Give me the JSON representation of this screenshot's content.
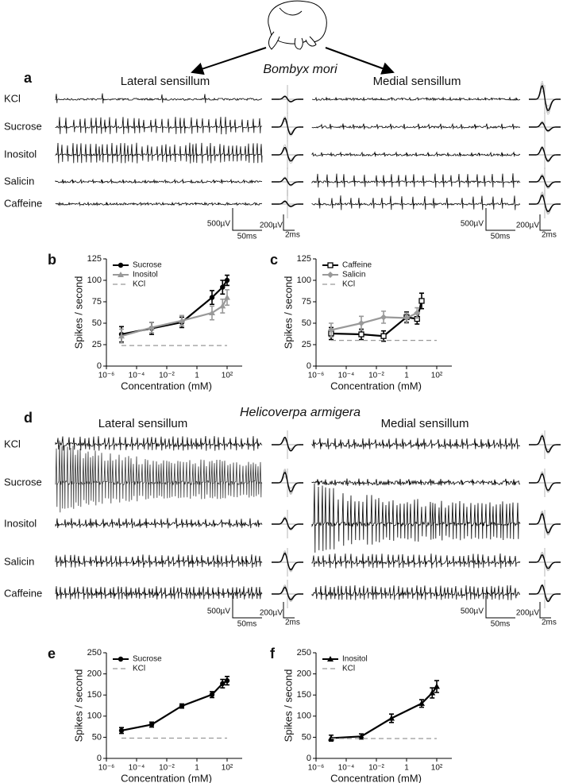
{
  "panel_a": {
    "label": "a",
    "species": "Bombyx mori",
    "lateral": "Lateral sensillum",
    "medial": "Medial sensillum",
    "rows": [
      "KCl",
      "Sucrose",
      "Inositol",
      "Salicin",
      "Caffeine"
    ],
    "scale": {
      "trace_v": "500µV",
      "trace_t": "50ms",
      "inset_v": "200µV",
      "inset_t": "2ms"
    }
  },
  "panel_d": {
    "label": "d",
    "species": "Helicoverpa armigera",
    "lateral": "Lateral sensillum",
    "medial": "Medial sensillum",
    "rows": [
      "KCl",
      "Sucrose",
      "Inositol",
      "Salicin",
      "Caffeine"
    ],
    "scale": {
      "trace_v": "500µV",
      "trace_t": "50ms",
      "inset_v": "200µV",
      "inset_t": "2ms"
    }
  },
  "chart_data": [
    {
      "type": "line",
      "panel_label": "b",
      "xlabel": "Concentration (mM)",
      "ylabel": "Spikes / second",
      "xscale": "log",
      "xlim": [
        1e-06,
        1000
      ],
      "xticks": [
        {
          "value": 1e-06,
          "label": "10⁻⁶"
        },
        {
          "value": 0.0001,
          "label": "10⁻⁴"
        },
        {
          "value": 0.01,
          "label": "10⁻²"
        },
        1,
        {
          "value": 100,
          "label": "10²"
        }
      ],
      "ylim": [
        0,
        125
      ],
      "yticks": [
        0,
        25,
        50,
        75,
        100,
        125
      ],
      "legend": "upper left",
      "series": [
        {
          "name": "Sucrose",
          "color": "#000000",
          "marker": "circle",
          "x": [
            1e-05,
            0.001,
            0.1,
            10,
            50,
            100
          ],
          "values": [
            37,
            44,
            51,
            80,
            92,
            100
          ],
          "errors": [
            9,
            7,
            6,
            8,
            8,
            6
          ]
        },
        {
          "name": "Inositol",
          "color": "#999999",
          "marker": "triangle",
          "x": [
            1e-05,
            0.001,
            0.1,
            10,
            50,
            100
          ],
          "values": [
            35,
            45,
            53,
            62,
            70,
            80
          ],
          "errors": [
            8,
            6,
            6,
            8,
            8,
            9
          ]
        },
        {
          "name": "KCl",
          "color": "#999999",
          "dash": true,
          "x": [
            1e-05,
            100
          ],
          "values": [
            24,
            24
          ]
        }
      ]
    },
    {
      "type": "line",
      "panel_label": "c",
      "xlabel": "Concentration (mM)",
      "ylabel": "Spikes / second",
      "xscale": "log",
      "xlim": [
        1e-06,
        1000
      ],
      "xticks": [
        {
          "value": 1e-06,
          "label": "10⁻⁶"
        },
        {
          "value": 0.0001,
          "label": "10⁻⁴"
        },
        {
          "value": 0.01,
          "label": "10⁻²"
        },
        1,
        {
          "value": 100,
          "label": "10²"
        }
      ],
      "ylim": [
        0,
        125
      ],
      "yticks": [
        0,
        25,
        50,
        75,
        100,
        125
      ],
      "legend": "upper left",
      "series": [
        {
          "name": "Caffeine",
          "color": "#000000",
          "marker": "square-open",
          "x": [
            1e-05,
            0.001,
            0.03,
            1,
            5,
            10
          ],
          "values": [
            38,
            37,
            35,
            57,
            55,
            76
          ],
          "errors": [
            7,
            6,
            6,
            6,
            6,
            9
          ]
        },
        {
          "name": "Salicin",
          "color": "#999999",
          "marker": "diamond",
          "x": [
            1e-05,
            0.001,
            0.03,
            1,
            5
          ],
          "values": [
            42,
            50,
            57,
            56,
            62
          ],
          "errors": [
            8,
            8,
            7,
            6,
            6
          ]
        },
        {
          "name": "KCl",
          "color": "#999999",
          "dash": true,
          "x": [
            1e-05,
            100
          ],
          "values": [
            30,
            30
          ]
        }
      ]
    },
    {
      "type": "line",
      "panel_label": "e",
      "xlabel": "Concentration (mM)",
      "ylabel": "Spikes / second",
      "xscale": "log",
      "xlim": [
        1e-06,
        1000
      ],
      "xticks": [
        {
          "value": 1e-06,
          "label": "10⁻⁶"
        },
        {
          "value": 0.0001,
          "label": "10⁻⁴"
        },
        {
          "value": 0.01,
          "label": "10⁻²"
        },
        1,
        {
          "value": 100,
          "label": "10²"
        }
      ],
      "ylim": [
        0,
        250
      ],
      "yticks": [
        0,
        50,
        100,
        150,
        200,
        250
      ],
      "legend": "upper left",
      "series": [
        {
          "name": "Sucrose",
          "color": "#000000",
          "marker": "circle",
          "x": [
            1e-05,
            0.001,
            0.1,
            10,
            50,
            100
          ],
          "values": [
            66,
            80,
            124,
            151,
            177,
            184
          ],
          "errors": [
            7,
            6,
            5,
            7,
            10,
            10
          ]
        },
        {
          "name": "KCl",
          "color": "#999999",
          "dash": true,
          "x": [
            1e-05,
            100
          ],
          "values": [
            48,
            48
          ]
        }
      ]
    },
    {
      "type": "line",
      "panel_label": "f",
      "xlabel": "Concentration (mM)",
      "ylabel": "Spikes / second",
      "xscale": "log",
      "xlim": [
        1e-06,
        1000
      ],
      "xticks": [
        {
          "value": 1e-06,
          "label": "10⁻⁶"
        },
        {
          "value": 0.0001,
          "label": "10⁻⁴"
        },
        {
          "value": 0.01,
          "label": "10⁻²"
        },
        1,
        {
          "value": 100,
          "label": "10²"
        }
      ],
      "ylim": [
        0,
        250
      ],
      "yticks": [
        0,
        50,
        100,
        150,
        200,
        250
      ],
      "legend": "upper left",
      "series": [
        {
          "name": "Inositol",
          "color": "#000000",
          "marker": "triangle",
          "x": [
            1e-05,
            0.001,
            0.1,
            10,
            50,
            100
          ],
          "values": [
            48,
            52,
            95,
            130,
            155,
            170
          ],
          "errors": [
            7,
            6,
            10,
            9,
            12,
            14
          ]
        },
        {
          "name": "KCl",
          "color": "#999999",
          "dash": true,
          "x": [
            1e-05,
            100
          ],
          "values": [
            47,
            47
          ]
        }
      ]
    }
  ]
}
